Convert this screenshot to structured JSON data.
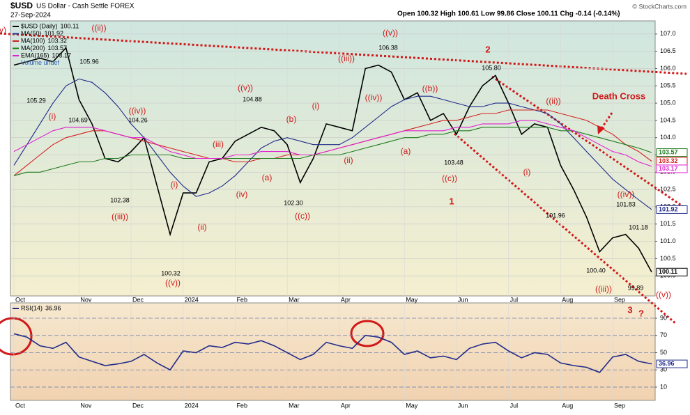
{
  "header": {
    "symbol": "$USD",
    "name": "US Dollar - Cash Settle FOREX",
    "date": "27-Sep-2024",
    "quote": "Open 100.32 High 100.61 Low 99.86 Close 100.11 Chg -0.14 (-0.14%)",
    "credit": "© StockCharts.com"
  },
  "chart_data": [
    {
      "type": "line",
      "legend": "upper left",
      "volume_label": "Volume undef",
      "categories": [
        "Oct",
        null,
        null,
        null,
        null,
        "Nov",
        null,
        null,
        null,
        "Dec",
        null,
        null,
        null,
        "2024",
        null,
        null,
        null,
        "Feb",
        null,
        null,
        null,
        "Mar",
        null,
        null,
        null,
        "Apr",
        null,
        null,
        null,
        null,
        "May",
        null,
        null,
        null,
        "Jun",
        null,
        null,
        null,
        "Jul",
        null,
        null,
        null,
        "Aug",
        null,
        null,
        null,
        "Sep",
        null,
        null,
        null
      ],
      "series": [
        {
          "name": "$USD (Daily)",
          "color": "#000000",
          "values": [
            106.1,
            106.2,
            106.3,
            106.2,
            106.6,
            105.1,
            104.4,
            103.4,
            103.3,
            103.6,
            104.0,
            102.6,
            101.2,
            102.4,
            102.4,
            103.3,
            103.4,
            103.9,
            104.1,
            104.3,
            104.2,
            103.8,
            102.7,
            103.4,
            104.4,
            104.3,
            104.2,
            106.0,
            106.1,
            105.9,
            105.1,
            105.3,
            104.5,
            104.7,
            104.1,
            104.9,
            105.5,
            105.8,
            105.0,
            104.1,
            104.4,
            104.3,
            103.2,
            102.5,
            101.7,
            100.7,
            101.1,
            101.2,
            100.8,
            100.11
          ]
        },
        {
          "name": "MA(50)",
          "color": "#1f2a8a",
          "values": [
            103.2,
            103.8,
            104.4,
            105.0,
            105.5,
            105.7,
            105.6,
            105.3,
            104.9,
            104.4,
            104.0,
            103.5,
            103.0,
            102.6,
            102.3,
            102.4,
            102.6,
            102.9,
            103.3,
            103.7,
            103.9,
            104.0,
            103.9,
            103.8,
            103.8,
            103.8,
            104.0,
            104.3,
            104.6,
            104.9,
            105.1,
            105.2,
            105.2,
            105.1,
            105.0,
            104.9,
            104.9,
            105.0,
            105.0,
            104.9,
            104.8,
            104.7,
            104.4,
            104.0,
            103.6,
            103.2,
            102.8,
            102.5,
            102.2,
            101.92
          ]
        },
        {
          "name": "MA(100)",
          "color": "#d42020",
          "values": [
            102.9,
            103.2,
            103.5,
            103.8,
            104.0,
            104.1,
            104.2,
            104.2,
            104.1,
            104.0,
            103.9,
            103.8,
            103.7,
            103.6,
            103.5,
            103.4,
            103.4,
            103.3,
            103.3,
            103.4,
            103.4,
            103.5,
            103.5,
            103.5,
            103.6,
            103.7,
            103.8,
            103.9,
            104.0,
            104.1,
            104.2,
            104.3,
            104.4,
            104.5,
            104.5,
            104.6,
            104.7,
            104.7,
            104.8,
            104.8,
            104.8,
            104.8,
            104.7,
            104.6,
            104.5,
            104.3,
            104.1,
            103.8,
            103.6,
            103.32
          ]
        },
        {
          "name": "MA(200)",
          "color": "#1e7a1e",
          "values": [
            102.9,
            103.0,
            103.0,
            103.1,
            103.2,
            103.3,
            103.3,
            103.4,
            103.4,
            103.5,
            103.5,
            103.5,
            103.5,
            103.4,
            103.4,
            103.4,
            103.4,
            103.4,
            103.4,
            103.4,
            103.4,
            103.4,
            103.4,
            103.5,
            103.5,
            103.5,
            103.6,
            103.7,
            103.8,
            103.9,
            104.0,
            104.0,
            104.1,
            104.1,
            104.2,
            104.2,
            104.3,
            104.3,
            104.3,
            104.3,
            104.3,
            104.3,
            104.2,
            104.2,
            104.1,
            104.0,
            103.9,
            103.8,
            103.7,
            103.57
          ]
        },
        {
          "name": "EMA(165)",
          "color": "#e020d0",
          "values": [
            103.6,
            103.8,
            104.0,
            104.2,
            104.3,
            104.3,
            104.3,
            104.2,
            104.1,
            104.0,
            104.0,
            103.8,
            103.6,
            103.5,
            103.4,
            103.4,
            103.4,
            103.5,
            103.5,
            103.6,
            103.6,
            103.6,
            103.5,
            103.5,
            103.6,
            103.7,
            103.8,
            103.9,
            104.0,
            104.1,
            104.2,
            104.2,
            104.2,
            104.2,
            104.3,
            104.3,
            104.4,
            104.4,
            104.4,
            104.5,
            104.5,
            104.4,
            104.3,
            104.2,
            104.0,
            103.8,
            103.6,
            103.5,
            103.3,
            103.17
          ]
        }
      ],
      "ylim": [
        99.42,
        107.38
      ],
      "yticks": [
        {
          "value": 100,
          "label": "100.0"
        },
        100.5,
        {
          "value": 101,
          "label": "101.0"
        },
        101.5,
        {
          "value": 102,
          "label": "102.0"
        },
        102.5,
        {
          "value": 103,
          "label": "103.0"
        },
        103.5,
        {
          "value": 104,
          "label": "104.0"
        },
        104.5,
        {
          "value": 105,
          "label": "105.0"
        },
        105.5,
        {
          "value": 106,
          "label": "106.0"
        },
        106.5,
        {
          "value": 107,
          "label": "107.0"
        }
      ],
      "grid": true,
      "annotations": [
        "v)",
        "((ii))",
        "105.96",
        "105.29",
        "(i)",
        "104.69",
        "((iv))",
        "104.26",
        "102.38",
        "((iii))",
        "(i)",
        "(ii)",
        "100.32",
        "((v))",
        "((v))",
        "104.88",
        "(iii)",
        "(iv)",
        "(a)",
        "(b)",
        "(i)",
        "102.30",
        "((c))",
        "((iii))",
        "((v))",
        "106.38",
        "((iv))",
        "(ii)",
        "((b))",
        "(a)",
        "103.48",
        "((c))",
        "1",
        "2",
        "105.80",
        "((ii))",
        "(i)",
        "101.96",
        "Death Cross",
        "((iv))",
        "101.83",
        "101.18",
        "100.40",
        "99.89",
        "((iii))",
        "((v))",
        "3",
        "?"
      ]
    },
    {
      "type": "line",
      "categories": [
        "Oct",
        null,
        null,
        null,
        null,
        "Nov",
        null,
        null,
        null,
        "Dec",
        null,
        null,
        null,
        "2024",
        null,
        null,
        null,
        "Feb",
        null,
        null,
        null,
        "Mar",
        null,
        null,
        null,
        "Apr",
        null,
        null,
        null,
        null,
        "May",
        null,
        null,
        null,
        "Jun",
        null,
        null,
        null,
        "Jul",
        null,
        null,
        null,
        "Aug",
        null,
        null,
        null,
        "Sep",
        null,
        null,
        null
      ],
      "series": [
        {
          "name": "RSI(14)",
          "color": "#1f2a8a",
          "values": [
            72,
            68,
            58,
            55,
            62,
            45,
            40,
            35,
            37,
            40,
            48,
            38,
            30,
            52,
            50,
            58,
            56,
            62,
            60,
            64,
            58,
            50,
            42,
            48,
            62,
            58,
            55,
            70,
            68,
            62,
            48,
            52,
            44,
            46,
            42,
            55,
            60,
            62,
            52,
            44,
            50,
            48,
            38,
            35,
            33,
            27,
            45,
            48,
            40,
            36.96
          ]
        }
      ],
      "ylim": [
        -5.4,
        107.8
      ],
      "yticks": [
        10,
        30,
        50,
        70,
        90
      ],
      "grid": true
    }
  ]
}
